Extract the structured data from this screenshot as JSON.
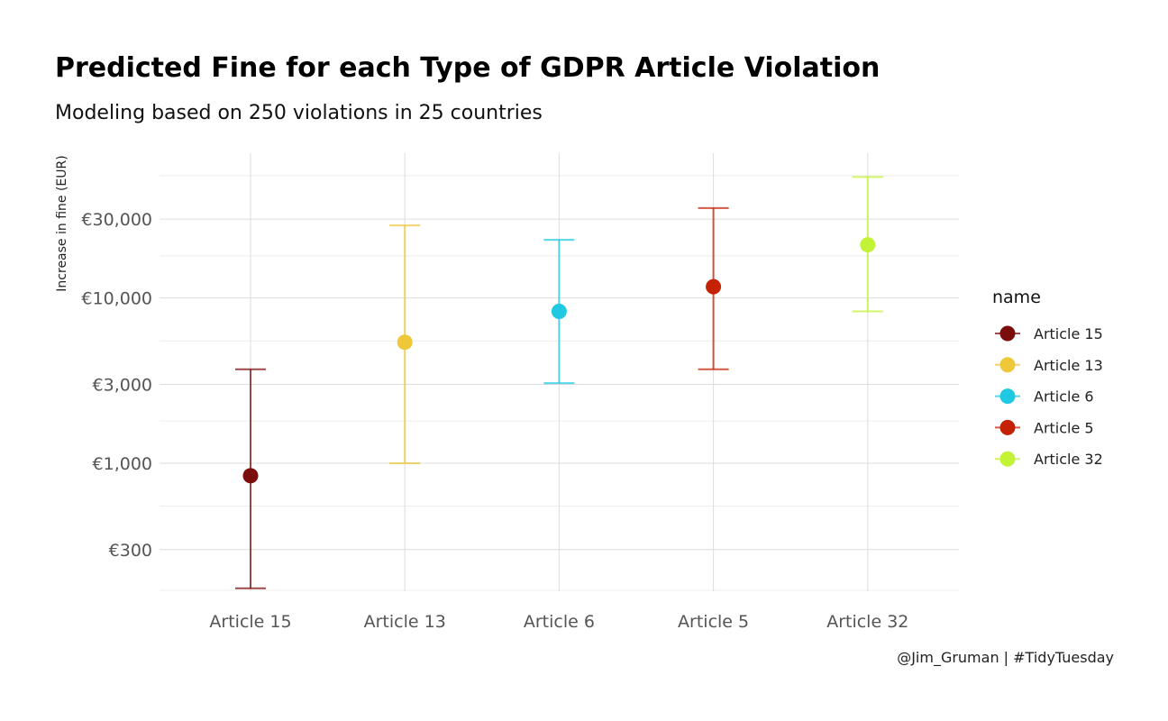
{
  "chart_data": {
    "type": "scatter",
    "title": "Predicted Fine for each Type of GDPR Article Violation",
    "subtitle": "Modeling based on 250 violations in 25 countries",
    "ylabel": "Increase in fine (EUR)",
    "xlabel": "",
    "y_scale": "log10",
    "ylim": [
      170,
      60000
    ],
    "y_ticks": [
      {
        "value": 300,
        "label": "€300"
      },
      {
        "value": 1000,
        "label": "€1,000"
      },
      {
        "value": 3000,
        "label": "€3,000"
      },
      {
        "value": 10000,
        "label": "€10,000"
      },
      {
        "value": 30000,
        "label": "€30,000"
      }
    ],
    "y_minor_ticks": [
      170,
      550,
      1800,
      5500,
      18000,
      55000
    ],
    "categories": [
      "Article 15",
      "Article 13",
      "Article 6",
      "Article 5",
      "Article 32"
    ],
    "points": [
      {
        "name": "Article 15",
        "estimate": 840,
        "low": 175,
        "high": 3700,
        "color": "#7B0D0D"
      },
      {
        "name": "Article 13",
        "estimate": 5400,
        "low": 1000,
        "high": 27500,
        "color": "#EFC839"
      },
      {
        "name": "Article 6",
        "estimate": 8300,
        "low": 3050,
        "high": 22500,
        "color": "#1FC9E2"
      },
      {
        "name": "Article 5",
        "estimate": 11700,
        "low": 3700,
        "high": 35000,
        "color": "#C32304"
      },
      {
        "name": "Article 32",
        "estimate": 21000,
        "low": 8300,
        "high": 54000,
        "color": "#C2F337"
      }
    ],
    "legend_title": "name",
    "legend_position": "right",
    "grid": true
  },
  "caption": "@Jim_Gruman | #TidyTuesday"
}
